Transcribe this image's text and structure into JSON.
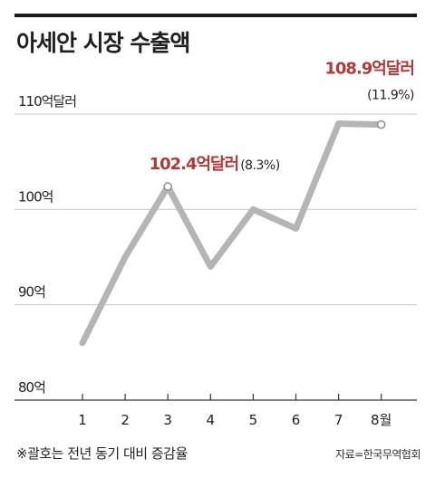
{
  "title": "아세안 시장 수출액",
  "footnote": "※괄호는 전년 동기 대비 증감율",
  "source": "자료=한국무역협회",
  "colors": {
    "line": "#b5b5b8",
    "accent": "#b03a3a",
    "grid": "#c8c8c8",
    "text": "#222222"
  },
  "chart_data": {
    "type": "line",
    "categories": [
      "1",
      "2",
      "3",
      "4",
      "5",
      "6",
      "7",
      "8월"
    ],
    "values": [
      86.0,
      95.0,
      102.4,
      94.0,
      100.0,
      98.0,
      109.0,
      108.9
    ],
    "ylim": [
      80,
      110
    ],
    "yticks": [
      {
        "value": 110,
        "label": "110억달러"
      },
      {
        "value": 100,
        "label": "100억"
      },
      {
        "value": 90,
        "label": "90억"
      },
      {
        "value": 80,
        "label": "80억"
      }
    ],
    "grid": true,
    "annotations": [
      {
        "index": 2,
        "value_label": "102.4억달러",
        "pct_label": "(8.3%)"
      },
      {
        "index": 7,
        "value_label": "108.9억달러",
        "pct_label": "(11.9%)"
      }
    ]
  }
}
